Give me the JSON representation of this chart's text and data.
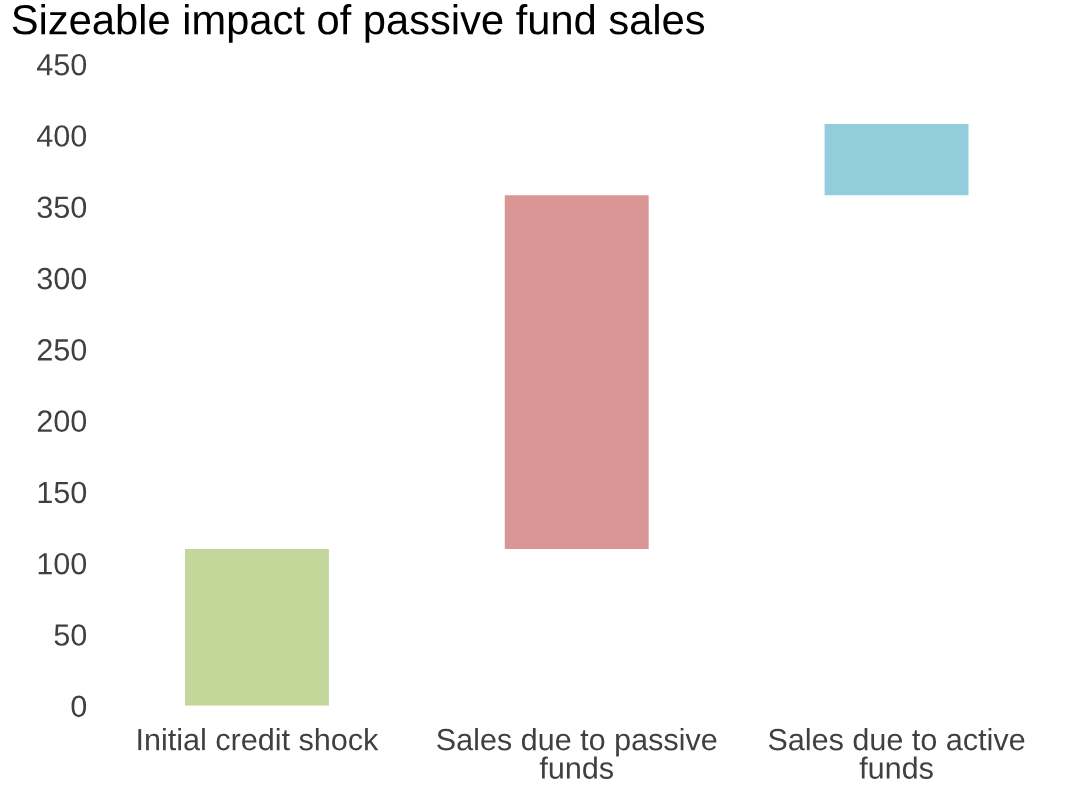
{
  "chart_data": {
    "type": "bar",
    "title": "Sizeable impact of passive fund sales",
    "categories": [
      "Initial credit shock",
      "Sales due to passive funds",
      "Sales due to active funds"
    ],
    "values": [
      110,
      248,
      50
    ],
    "base": [
      0,
      110,
      358
    ],
    "colors": [
      "#c4d79b",
      "#da9694",
      "#92cddc"
    ],
    "ylim": [
      0,
      450
    ],
    "yticks": [
      0,
      50,
      100,
      150,
      200,
      250,
      300,
      350,
      400,
      450
    ],
    "grid": false,
    "legend": false
  }
}
